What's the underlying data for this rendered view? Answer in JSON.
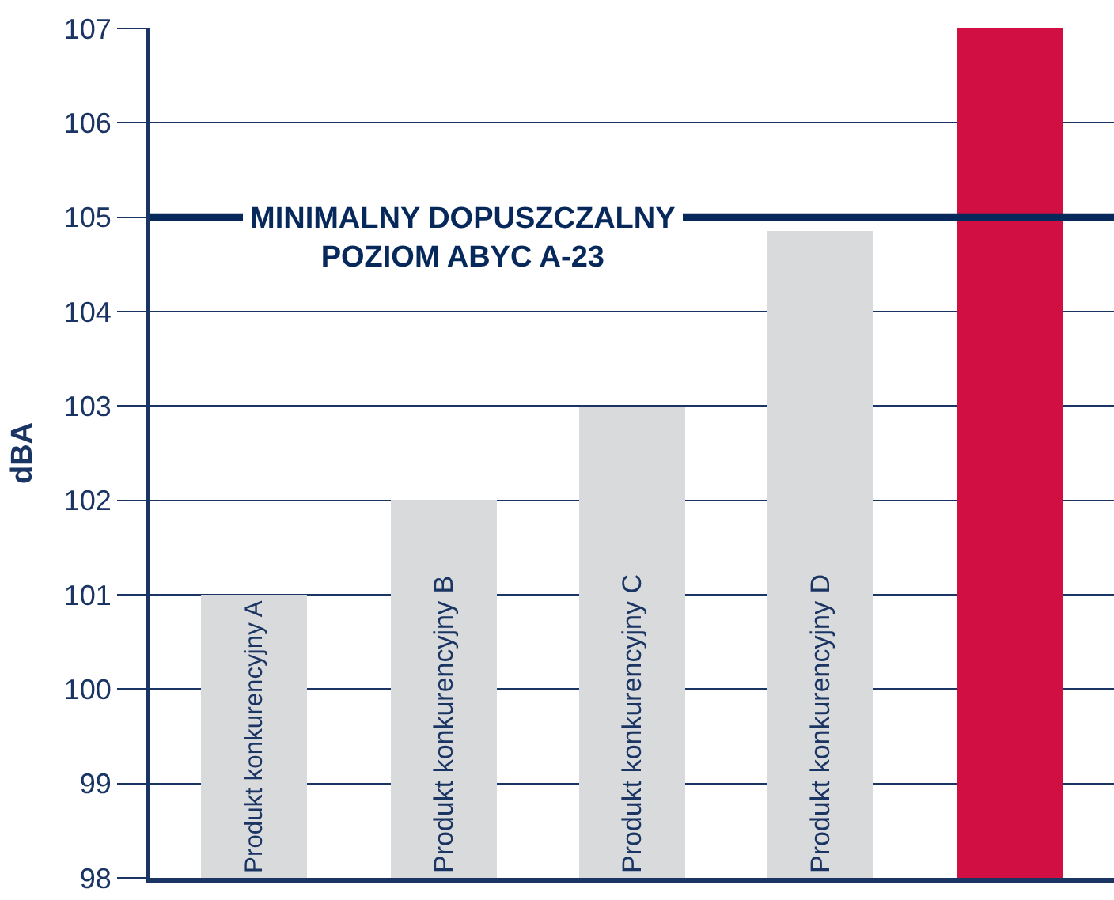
{
  "chart_data": {
    "type": "bar",
    "ylabel": "dBA",
    "categories": [
      "Produkt konkurencyjny A",
      "Produkt konkurencyjny B",
      "Produkt konkurencyjny C",
      "Produkt konkurencyjny D",
      null
    ],
    "values": [
      101,
      102,
      103,
      104.85,
      107
    ],
    "colors": [
      "#d9dadb",
      "#d9dadb",
      "#d9dadb",
      "#d9dadb",
      "#d20f42"
    ],
    "ylim": [
      98,
      107
    ],
    "yticks": [
      98,
      99,
      100,
      101,
      102,
      103,
      104,
      105,
      106,
      107
    ],
    "grid": "y",
    "legend": false,
    "ref_lines": [
      {
        "axis": "y",
        "value": 105,
        "label": "MINIMALNY DOPUSZCZALNY\nPOZIOM ABYC A-23",
        "color": "#06285a"
      }
    ]
  }
}
